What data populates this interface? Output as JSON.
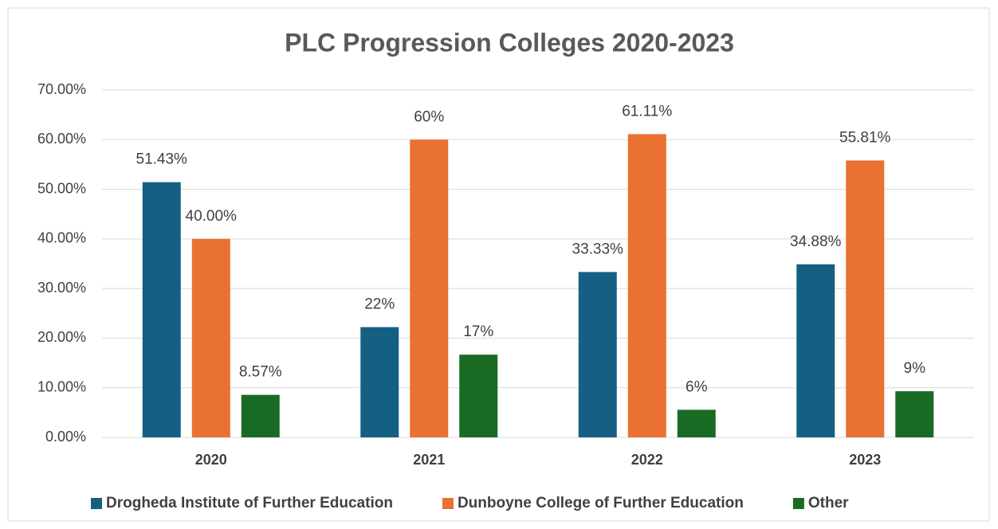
{
  "chart_data": {
    "type": "bar",
    "title": "PLC Progression Colleges 2020-2023",
    "categories": [
      "2020",
      "2021",
      "2022",
      "2023"
    ],
    "series": [
      {
        "name": "Drogheda Institute of Further Education",
        "color": "#156082",
        "values": [
          51.43,
          22.22,
          33.33,
          34.88
        ],
        "value_labels": [
          "51.43%",
          "22%",
          "33.33%",
          "34.88%"
        ]
      },
      {
        "name": "Dunboyne College of Further Education",
        "color": "#e97132",
        "values": [
          40.0,
          60.0,
          61.11,
          55.81
        ],
        "value_labels": [
          "40.00%",
          "60%",
          "61.11%",
          "55.81%"
        ]
      },
      {
        "name": "Other",
        "color": "#196b24",
        "values": [
          8.57,
          16.67,
          5.56,
          9.3
        ],
        "value_labels": [
          "8.57%",
          "17%",
          "6%",
          "9%"
        ]
      }
    ],
    "ylim": [
      0,
      70
    ],
    "yticks": [
      {
        "value": 0,
        "label": "0.00%"
      },
      {
        "value": 10,
        "label": "10.00%"
      },
      {
        "value": 20,
        "label": "20.00%"
      },
      {
        "value": 30,
        "label": "30.00%"
      },
      {
        "value": 40,
        "label": "40.00%"
      },
      {
        "value": 50,
        "label": "50.00%"
      },
      {
        "value": 60,
        "label": "60.00%"
      },
      {
        "value": 70,
        "label": "70.00%"
      }
    ],
    "grid": true,
    "legend": "bottom"
  }
}
